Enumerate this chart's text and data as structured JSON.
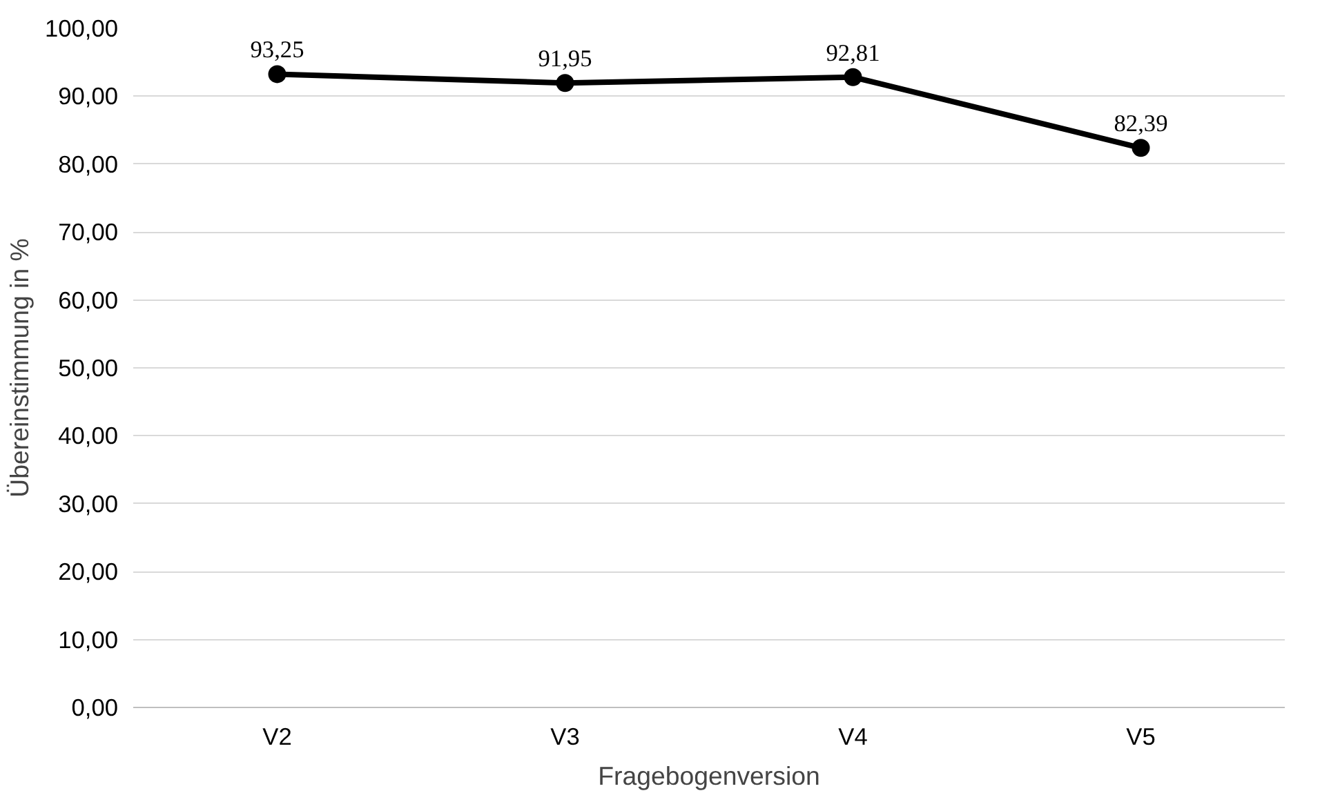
{
  "chart_data": {
    "type": "line",
    "xlabel": "Fragebogenversion",
    "ylabel": "Übereinstimmung in %",
    "categories": [
      "V2",
      "V3",
      "V4",
      "V5"
    ],
    "series": [
      {
        "color": "#000000",
        "values": [
          93.25,
          91.95,
          92.81,
          82.39
        ],
        "value_labels": [
          "93,25",
          "91,95",
          "92,81",
          "82,39"
        ]
      }
    ],
    "ylim": [
      0,
      100
    ],
    "yticks": [
      {
        "value": 0,
        "label": "0,00"
      },
      {
        "value": 10,
        "label": "10,00"
      },
      {
        "value": 20,
        "label": "20,00"
      },
      {
        "value": 30,
        "label": "30,00"
      },
      {
        "value": 40,
        "label": "40,00"
      },
      {
        "value": 50,
        "label": "50,00"
      },
      {
        "value": 60,
        "label": "60,00"
      },
      {
        "value": 70,
        "label": "70,00"
      },
      {
        "value": 80,
        "label": "80,00"
      },
      {
        "value": 90,
        "label": "90,00"
      },
      {
        "value": 100,
        "label": "100,00"
      }
    ],
    "grid": "y",
    "marker": "circle",
    "line_style": "solid"
  }
}
